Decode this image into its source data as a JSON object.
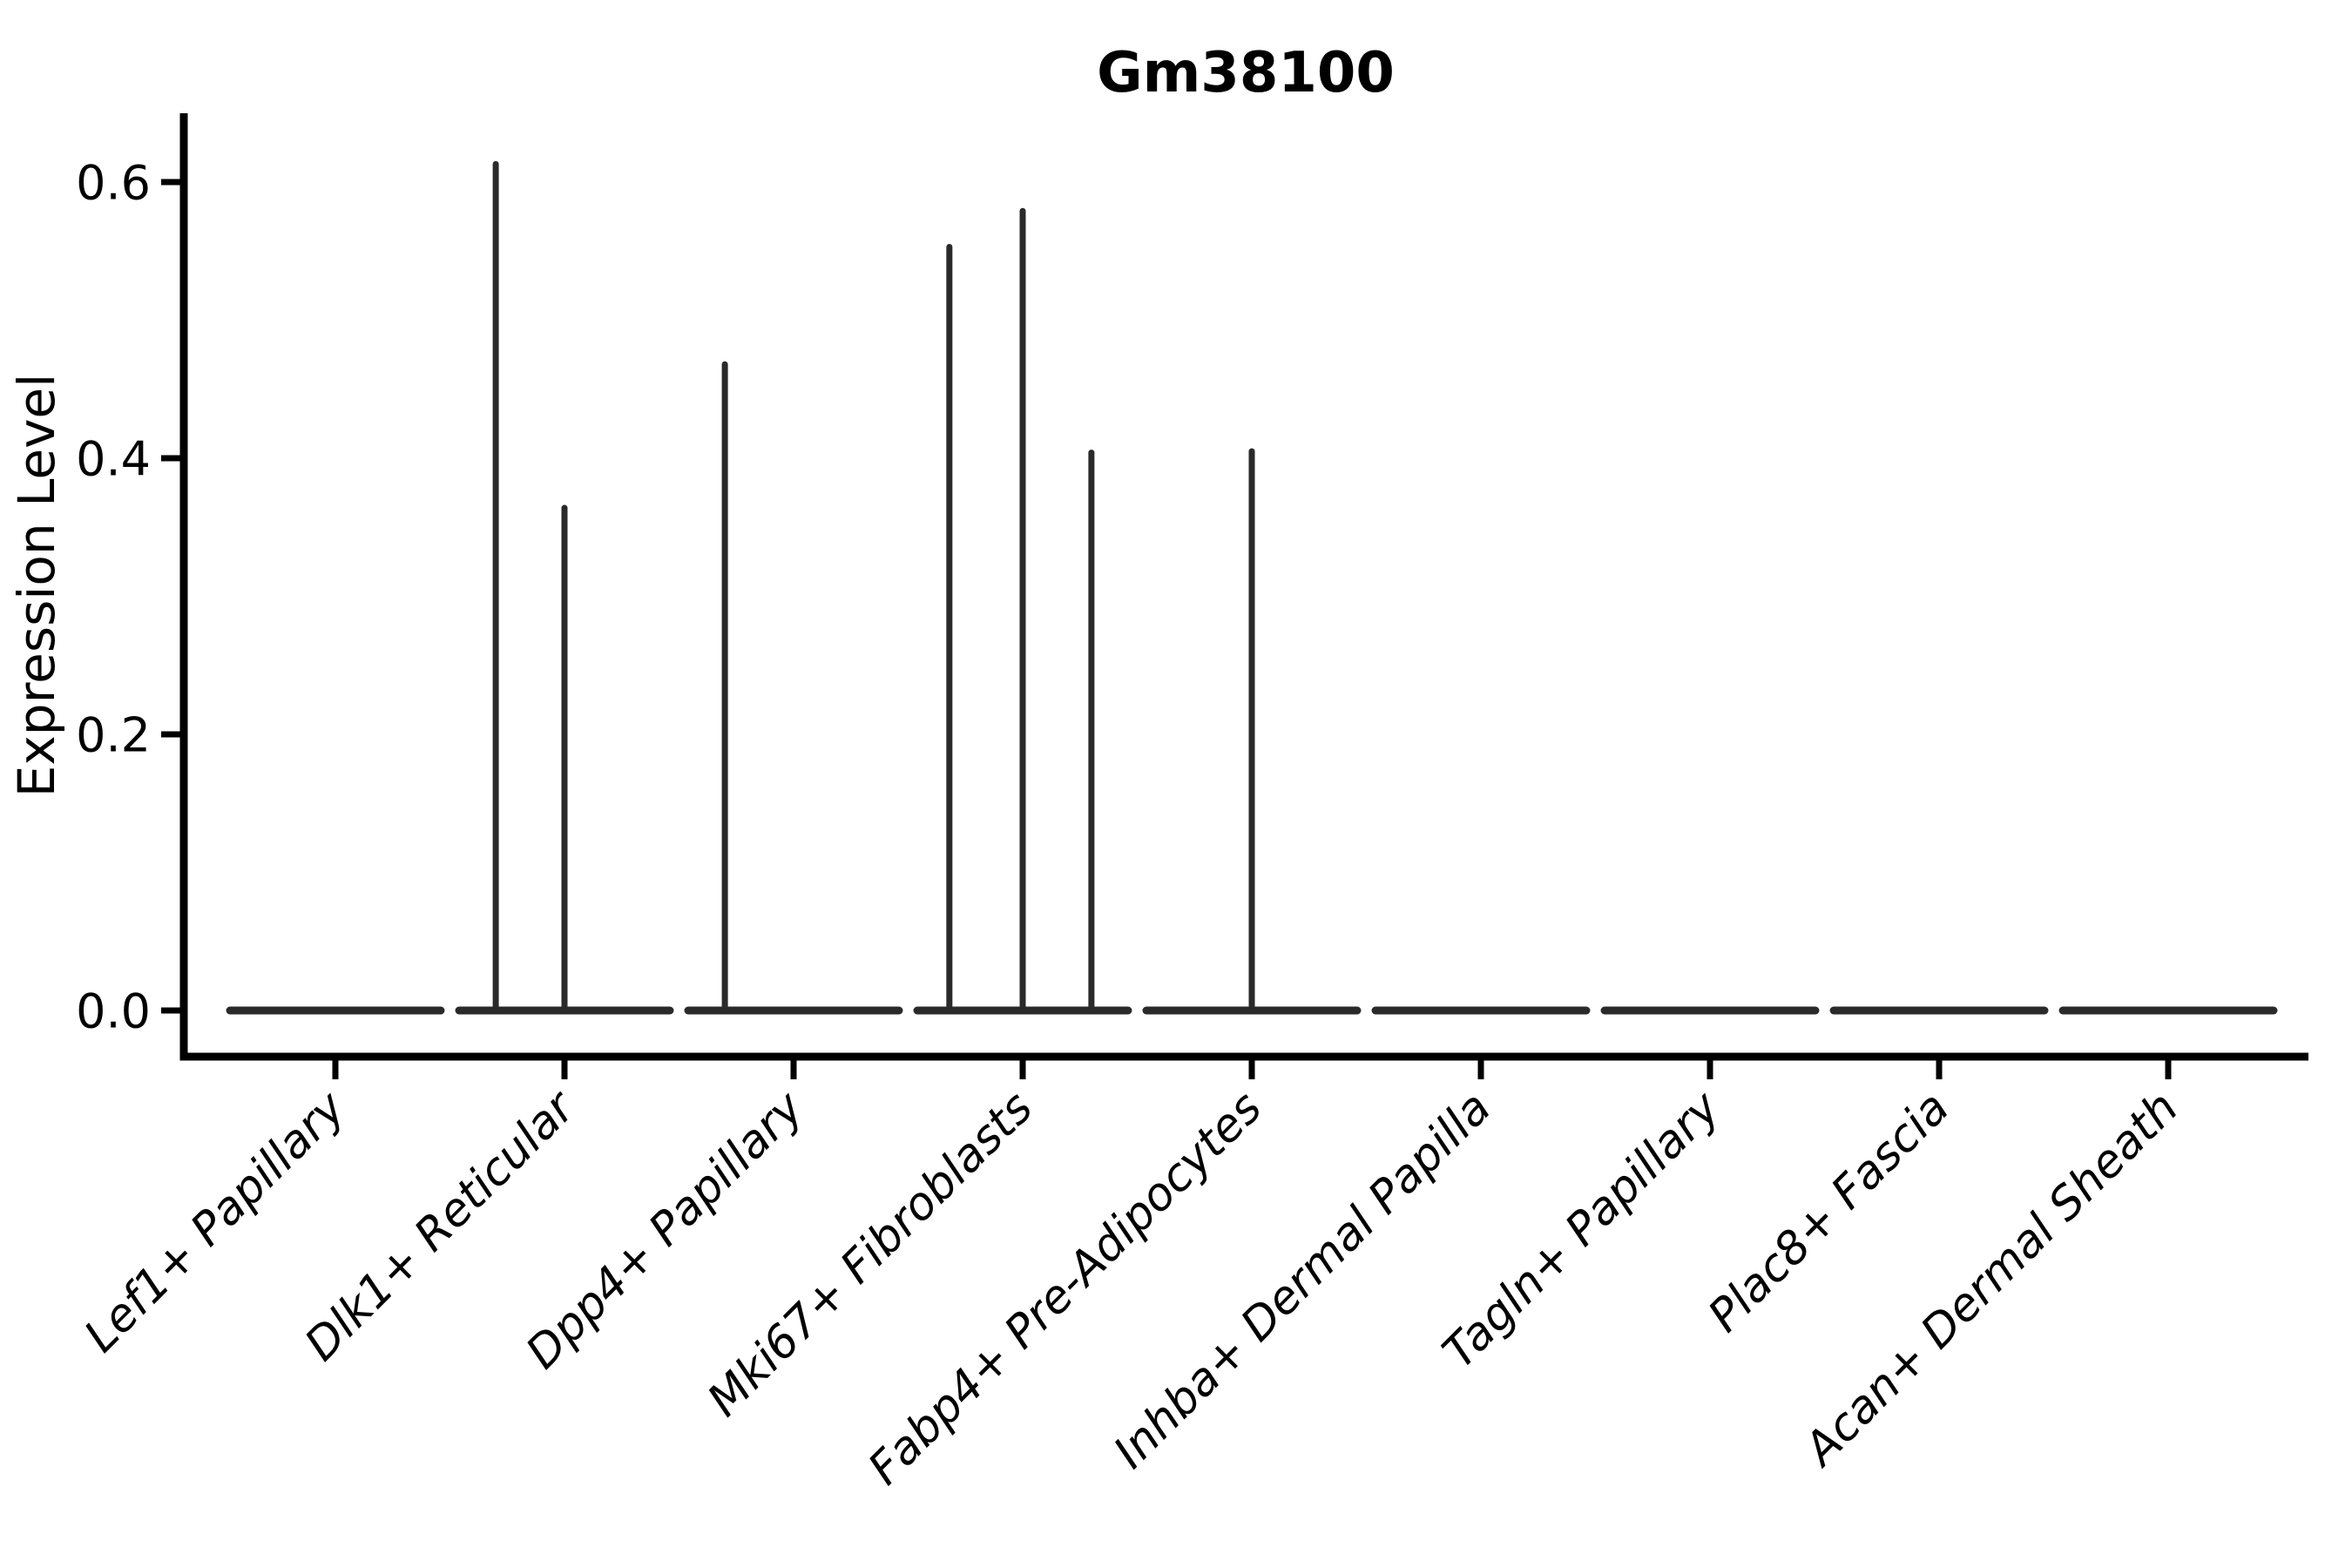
{
  "chart_data": {
    "type": "violin",
    "title": "Gm38100",
    "xlabel": "",
    "ylabel": "Expression Level",
    "yticks": [
      "0.0",
      "0.2",
      "0.4",
      "0.6"
    ],
    "ytick_values": [
      0.0,
      0.2,
      0.4,
      0.6
    ],
    "ylim": [
      -0.033,
      0.65
    ],
    "grid": false,
    "legend": "none",
    "categories": [
      "Lef1+ Papillary",
      "Dlk1+ Reticular",
      "Dpp4+ Papillary",
      "Mki67+ Fibroblasts",
      "Fabp4+ Pre-Adipocytes",
      "Inhba+ Dermal Papilla",
      "Tagln+ Papillary",
      "Plac8+ Fascia",
      "Acan+ Dermal Sheath"
    ],
    "series": [
      {
        "name": "Lef1+ Papillary",
        "baseline_max_density_at": 0.0,
        "spikes": []
      },
      {
        "name": "Dlk1+ Reticular",
        "baseline_max_density_at": 0.0,
        "spikes": [
          {
            "offset_units": -0.3,
            "max": 0.613
          },
          {
            "offset_units": 0.0,
            "max": 0.364
          }
        ]
      },
      {
        "name": "Dpp4+ Papillary",
        "baseline_max_density_at": 0.0,
        "spikes": [
          {
            "offset_units": -0.3,
            "max": 0.468
          }
        ]
      },
      {
        "name": "Mki67+ Fibroblasts",
        "baseline_max_density_at": 0.0,
        "spikes": [
          {
            "offset_units": -0.32,
            "max": 0.553
          },
          {
            "offset_units": 0.0,
            "max": 0.579
          },
          {
            "offset_units": 0.3,
            "max": 0.404
          }
        ]
      },
      {
        "name": "Fabp4+ Pre-Adipocytes",
        "baseline_max_density_at": 0.0,
        "spikes": [
          {
            "offset_units": 0.0,
            "max": 0.405
          }
        ]
      },
      {
        "name": "Inhba+ Dermal Papilla",
        "baseline_max_density_at": 0.0,
        "spikes": []
      },
      {
        "name": "Tagln+ Papillary",
        "baseline_max_density_at": 0.0,
        "spikes": []
      },
      {
        "name": "Plac8+ Fascia",
        "baseline_max_density_at": 0.0,
        "spikes": []
      },
      {
        "name": "Acan+ Dermal Sheath",
        "baseline_max_density_at": 0.0,
        "spikes": []
      }
    ],
    "violin_halfwidth_units": 0.46,
    "colors": {
      "background": "#ffffff",
      "axis": "#000000",
      "text": "#000000",
      "violin_outline": "#2a2a2a"
    }
  }
}
